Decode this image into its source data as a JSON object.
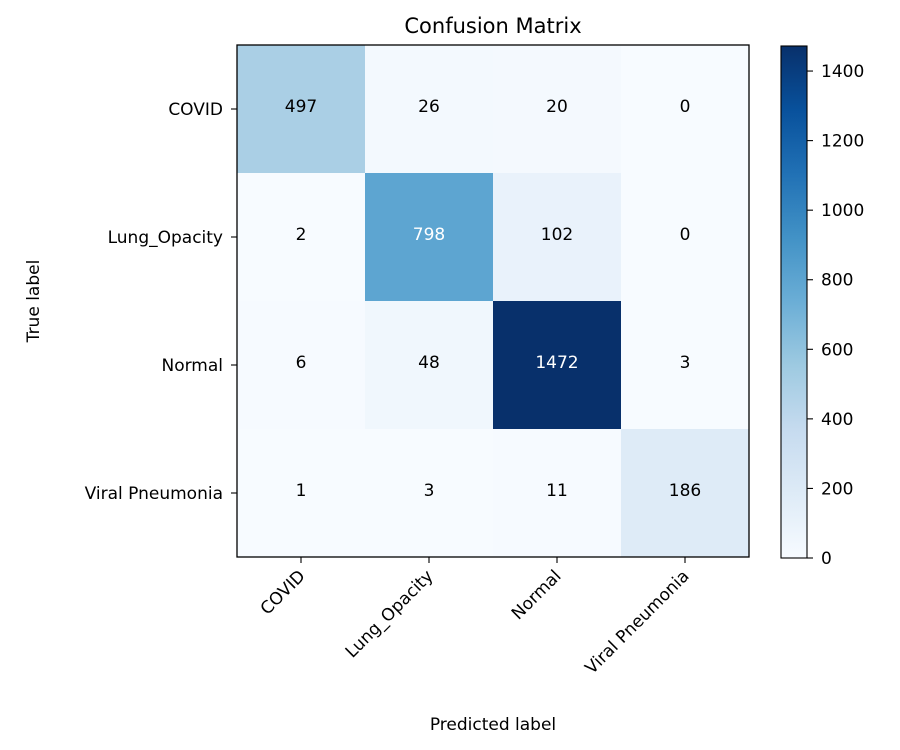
{
  "chart_data": {
    "type": "heatmap",
    "title": "Confusion Matrix",
    "xlabel": "Predicted label",
    "ylabel": "True label",
    "x_categories": [
      "COVID",
      "Lung_Opacity",
      "Normal",
      "Viral Pneumonia"
    ],
    "y_categories": [
      "COVID",
      "Lung_Opacity",
      "Normal",
      "Viral Pneumonia"
    ],
    "values": [
      [
        497,
        26,
        20,
        0
      ],
      [
        2,
        798,
        102,
        0
      ],
      [
        6,
        48,
        1472,
        3
      ],
      [
        1,
        3,
        11,
        186
      ]
    ],
    "colormap": "Blues",
    "colorbar": {
      "min": 0,
      "max": 1472,
      "ticks": [
        0,
        200,
        400,
        600,
        800,
        1000,
        1200,
        1400
      ]
    },
    "text_colors": {
      "dark": "#000000",
      "light": "#ffffff"
    }
  }
}
